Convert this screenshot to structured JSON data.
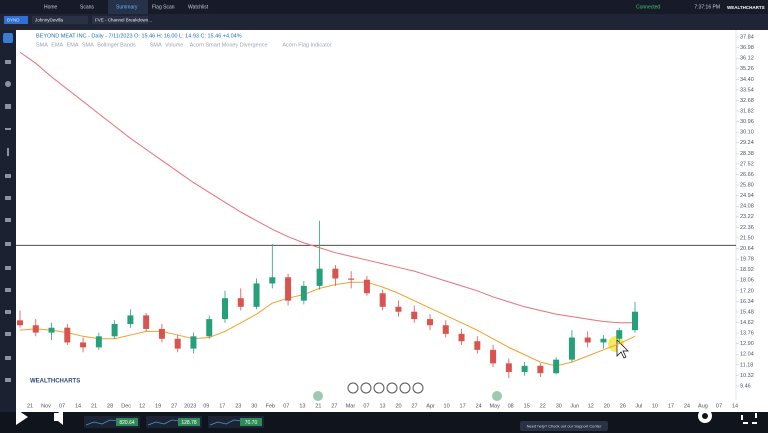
{
  "nav": {
    "tabs": [
      "Home",
      "Scans",
      "Summary",
      "Flag Scan",
      "Watchlist"
    ],
    "time": "7:37:16 PM",
    "status": "Connected",
    "brand": "WEALTHCHARTS"
  },
  "symbol_tabs": [
    "BYND",
    "JohnnyDevilla",
    "FVE - Channel Breakdown..."
  ],
  "chart": {
    "title": "BEYOND MEAT INC - Daily - 7/11/2023 O: 15.46 H: 16.00 L: 14.93 C: 15.46 +4.04%",
    "indicators": [
      "SMA",
      "EMA",
      "EMA",
      "SMA",
      "Bollinger Bands",
      "SMA",
      "Volume",
      "Acorn Smart Money Divergence",
      "Acorn Flag Indicator"
    ],
    "ylim": [
      8.32,
      38.41
    ],
    "yticks": [
      37.84,
      36.98,
      36.12,
      35.26,
      {
        "value": 34.4,
        "label": "34.40"
      },
      33.54,
      32.68,
      31.82,
      30.96,
      {
        "value": 30.1,
        "label": "30.10"
      },
      29.24,
      28.38,
      27.52,
      26.66,
      {
        "value": 25.8,
        "label": "25.80"
      },
      24.94,
      24.08,
      23.22,
      22.36,
      {
        "value": 21.5,
        "label": "21.50"
      },
      20.64,
      19.78,
      18.92,
      18.06,
      {
        "value": 17.2,
        "label": "17.20"
      },
      16.34,
      15.48,
      14.62,
      13.76,
      {
        "value": 12.9,
        "label": "12.90"
      },
      12.04,
      11.18,
      10.32,
      9.46
    ],
    "dates": [
      "21",
      "Nov",
      "07",
      "14",
      "21",
      "28",
      "Dec",
      "12",
      "19",
      "27",
      "2023",
      "09",
      "17",
      "23",
      "30",
      "Feb",
      "07",
      "13",
      "21",
      "27",
      "Mar",
      "07",
      "13",
      "20",
      "27",
      "Apr",
      "10",
      "17",
      "24",
      "May",
      "08",
      "15",
      "22",
      "30",
      "Jun",
      "12",
      "20",
      "26",
      "Jul",
      "10",
      "17",
      "24",
      "Aug",
      "07",
      "14"
    ],
    "candles": [
      [
        14.8,
        15.6,
        14.2,
        14.4
      ],
      [
        14.4,
        14.9,
        13.5,
        13.8
      ],
      [
        13.8,
        14.6,
        13.2,
        14.2
      ],
      [
        14.2,
        14.5,
        12.8,
        13.0
      ],
      [
        13.0,
        13.4,
        12.2,
        12.6
      ],
      [
        12.6,
        13.8,
        12.4,
        13.5
      ],
      [
        13.5,
        14.8,
        13.3,
        14.5
      ],
      [
        14.5,
        15.7,
        14.2,
        15.2
      ],
      [
        15.2,
        15.4,
        13.9,
        14.1
      ],
      [
        14.1,
        14.5,
        13.0,
        13.3
      ],
      [
        13.3,
        13.6,
        12.2,
        12.5
      ],
      [
        12.5,
        13.8,
        12.1,
        13.5
      ],
      [
        13.5,
        15.2,
        13.3,
        14.9
      ],
      [
        14.9,
        17.2,
        14.6,
        16.6
      ],
      [
        16.6,
        17.4,
        15.6,
        15.9
      ],
      [
        15.9,
        18.2,
        15.7,
        17.8
      ],
      [
        17.8,
        21.0,
        17.4,
        18.3
      ],
      [
        18.3,
        18.6,
        16.0,
        16.4
      ],
      [
        16.4,
        18.0,
        16.1,
        17.6
      ],
      [
        17.6,
        22.9,
        17.3,
        19.0
      ],
      [
        19.0,
        19.3,
        17.6,
        18.2
      ],
      [
        18.2,
        18.8,
        17.4,
        18.1
      ],
      [
        18.1,
        18.4,
        16.8,
        17.0
      ],
      [
        17.0,
        17.3,
        15.6,
        15.9
      ],
      [
        15.9,
        16.4,
        15.1,
        15.5
      ],
      [
        15.5,
        16.0,
        14.6,
        14.9
      ],
      [
        14.9,
        15.3,
        14.0,
        14.4
      ],
      [
        14.4,
        14.8,
        13.4,
        13.7
      ],
      [
        13.7,
        14.1,
        12.8,
        13.1
      ],
      [
        13.1,
        13.5,
        12.1,
        12.4
      ],
      [
        12.4,
        12.8,
        11.0,
        11.3
      ],
      [
        11.3,
        11.7,
        10.1,
        10.6
      ],
      [
        10.6,
        11.4,
        10.3,
        11.1
      ],
      [
        11.1,
        11.3,
        10.2,
        10.5
      ],
      [
        10.5,
        11.8,
        10.4,
        11.6
      ],
      [
        11.6,
        14.0,
        11.4,
        13.4
      ],
      [
        13.4,
        13.9,
        12.6,
        13.0
      ],
      [
        13.0,
        13.6,
        12.5,
        13.3
      ],
      [
        13.3,
        14.2,
        12.9,
        14.0
      ],
      [
        14.0,
        16.3,
        13.8,
        15.5
      ]
    ],
    "up_color": "#26a07a",
    "down_color": "#d9534f",
    "lines": [
      {
        "color": "#e8707a",
        "values": [
          36.6,
          35.7,
          34.6,
          33.6,
          32.6,
          31.6,
          30.6,
          29.6,
          28.7,
          27.8,
          26.9,
          26.0,
          25.2,
          24.4,
          23.6,
          22.9,
          22.2,
          21.6,
          21.1,
          20.7,
          20.3,
          20.0,
          19.7,
          19.4,
          19.1,
          18.8,
          18.4,
          18.0,
          17.6,
          17.2,
          16.7,
          16.3,
          15.9,
          15.6,
          15.3,
          15.1,
          14.9,
          14.7,
          14.6,
          14.6
        ]
      },
      {
        "color": "#f0a030",
        "values": [
          14.0,
          14.1,
          14.0,
          13.8,
          13.5,
          13.3,
          13.3,
          13.6,
          13.9,
          13.9,
          13.6,
          13.3,
          13.4,
          13.9,
          14.6,
          15.3,
          16.2,
          16.6,
          16.9,
          17.4,
          17.7,
          17.9,
          17.9,
          17.5,
          17.0,
          16.4,
          15.8,
          15.2,
          14.6,
          14.0,
          13.3,
          12.6,
          12.0,
          11.4,
          11.1,
          11.4,
          11.9,
          12.4,
          12.9,
          13.5
        ]
      }
    ],
    "horizontal_line": 20.9,
    "watermark": "WEALTHCHARTS"
  },
  "footer": {
    "tickers": [
      "820.64",
      "128.78",
      "70.70"
    ],
    "help": "Need help? Check out our Support Center"
  }
}
